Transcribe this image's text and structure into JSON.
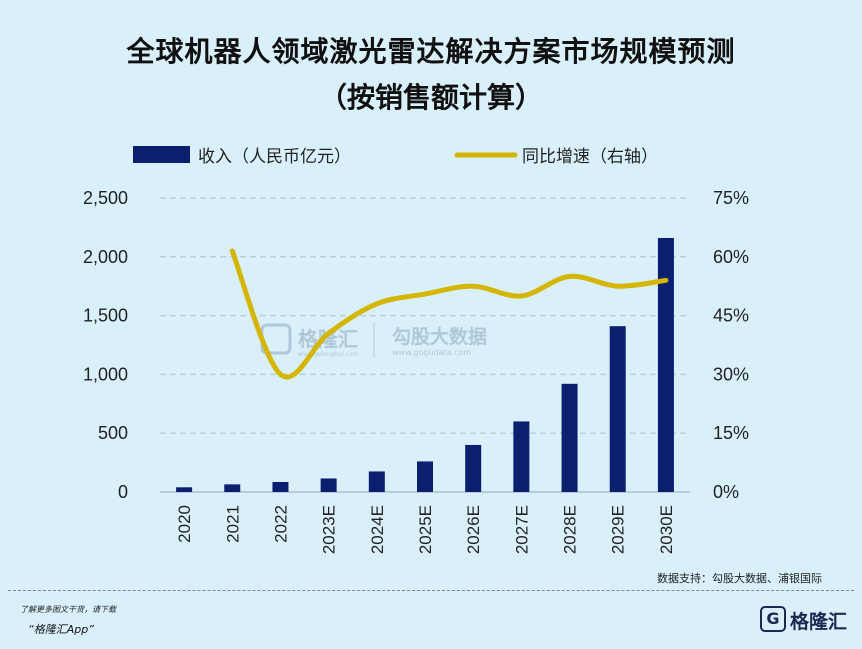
{
  "title_line1": "全球机器人领域激光雷达解决方案市场规模预测",
  "title_line2": "（按销售额计算）",
  "legend": {
    "bar_label": "收入（人民币亿元）",
    "line_label": "同比增速（右轴）"
  },
  "colors": {
    "bar": "#0c1f6e",
    "line": "#d4b600",
    "grid": "#b9cfdc",
    "background": "#d9f0fb"
  },
  "watermark": {
    "brand": "格隆汇",
    "brand_url": "www.gelonghui.com",
    "partner": "勾股大数据",
    "partner_url": "www.gogudata.com"
  },
  "source": "数据支持：勾股大数据、浦银国际",
  "footer": {
    "note": "了解更多图文干货，请下载",
    "app": "“格隆汇App”",
    "brand": "格隆汇",
    "logo_letter": "G"
  },
  "chart_data": {
    "type": "bar+line",
    "categories": [
      "2020",
      "2021",
      "2022",
      "2023E",
      "2024E",
      "2025E",
      "2026E",
      "2027E",
      "2028E",
      "2029E",
      "2030E"
    ],
    "series": [
      {
        "name": "收入（人民币亿元）",
        "type": "bar",
        "axis": "left",
        "values": [
          40,
          65,
          85,
          115,
          175,
          260,
          400,
          600,
          920,
          1410,
          2160
        ]
      },
      {
        "name": "同比增速（右轴）",
        "type": "line",
        "axis": "right",
        "unit": "%",
        "values": [
          null,
          61.5,
          30,
          40.5,
          48,
          50.5,
          52.5,
          50,
          55,
          52.5,
          54
        ]
      }
    ],
    "y_left": {
      "min": 0,
      "max": 2500,
      "ticks": [
        0,
        500,
        1000,
        1500,
        2000,
        2500
      ],
      "tick_labels": [
        "0",
        "500",
        "1,000",
        "1,500",
        "2,000",
        "2,500"
      ]
    },
    "y_right": {
      "min": 0,
      "max": 75,
      "ticks": [
        0,
        15,
        30,
        45,
        60,
        75
      ],
      "tick_labels": [
        "0%",
        "15%",
        "30%",
        "45%",
        "60%",
        "75%"
      ]
    },
    "grid": true,
    "legend_position": "top"
  }
}
